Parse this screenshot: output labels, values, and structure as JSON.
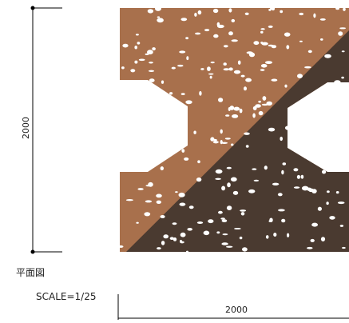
{
  "plan": {
    "height_dimension": "2000",
    "width_dimension": "2000",
    "view_label": "平面図",
    "scale": "SCALE=1/25"
  }
}
